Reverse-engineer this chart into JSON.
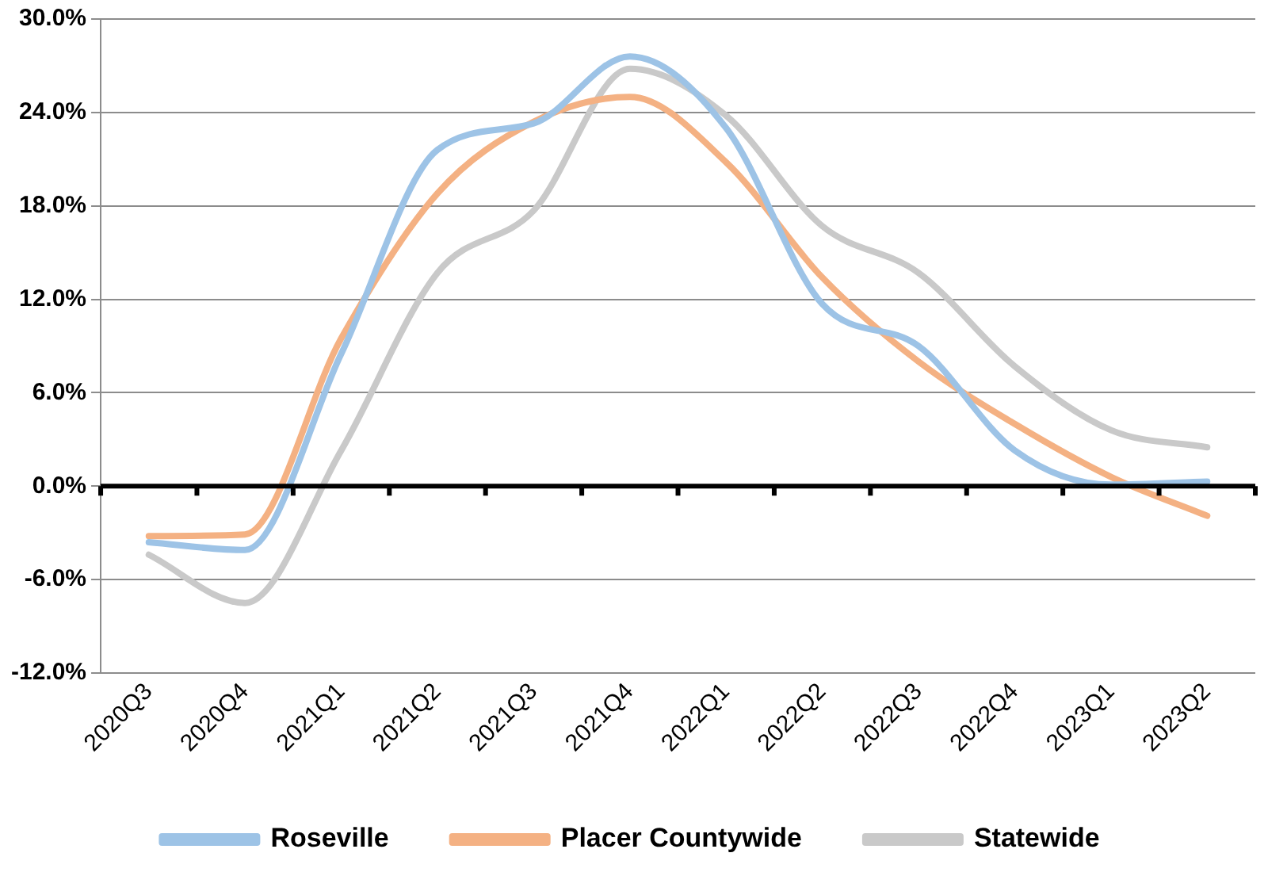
{
  "chart_data": {
    "type": "line",
    "categories": [
      "2020Q3",
      "2020Q4",
      "2021Q1",
      "2021Q2",
      "2021Q3",
      "2021Q4",
      "2022Q1",
      "2022Q2",
      "2022Q3",
      "2022Q4",
      "2023Q1",
      "2023Q2"
    ],
    "series": [
      {
        "name": "Roseville",
        "color": "#9dc3e6",
        "values": [
          -3.6,
          -4.1,
          8.5,
          21.6,
          23.3,
          27.6,
          23.0,
          11.7,
          9.0,
          2.3,
          0.1,
          0.3
        ]
      },
      {
        "name": "Placer Countywide",
        "color": "#f4b183",
        "values": [
          -3.2,
          -3.1,
          9.5,
          18.8,
          23.4,
          25.0,
          20.8,
          13.4,
          8.0,
          4.0,
          0.6,
          -1.9
        ]
      },
      {
        "name": "Statewide",
        "color": "#c9c9c9",
        "values": [
          -4.4,
          -7.5,
          2.3,
          13.7,
          17.7,
          26.8,
          23.8,
          16.7,
          13.7,
          7.7,
          3.6,
          2.5
        ]
      }
    ],
    "ylim": [
      -12,
      30
    ],
    "yticks": [
      {
        "value": -12,
        "label": "-12.0%"
      },
      {
        "value": -6,
        "label": "-6.0%"
      },
      {
        "value": 0,
        "label": "0.0%"
      },
      {
        "value": 6,
        "label": "6.0%"
      },
      {
        "value": 12,
        "label": "12.0%"
      },
      {
        "value": 18,
        "label": "18.0%"
      },
      {
        "value": 24,
        "label": "24.0%"
      },
      {
        "value": 30,
        "label": "30.0%"
      }
    ],
    "ref_lines": [
      {
        "axis": "y",
        "value": 0,
        "color": "#000000"
      }
    ],
    "grid": "y",
    "legend": "bottom",
    "marker": "none",
    "line_style": "solid"
  }
}
